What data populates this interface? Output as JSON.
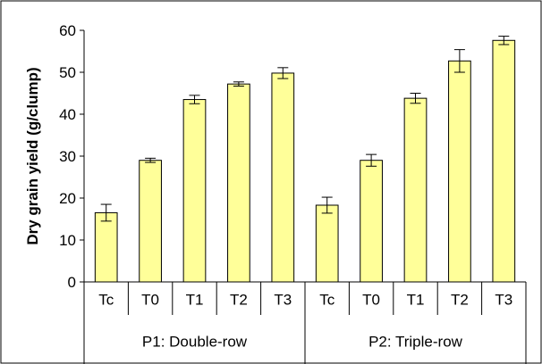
{
  "chart_data": {
    "type": "bar",
    "title": "",
    "ylabel": "Dry grain yield (g/clump)",
    "xlabel": "",
    "ylim": [
      0,
      60
    ],
    "yticks": [
      0,
      10,
      20,
      30,
      40,
      50,
      60
    ],
    "grid": false,
    "legend": "none",
    "bar_color": "#ffff99",
    "bar_edge_color": "#000000",
    "groups": [
      {
        "name": "P1: Double-row",
        "categories": [
          "Tc",
          "T0",
          "T1",
          "T2",
          "T3"
        ],
        "values": [
          16.5,
          29.0,
          43.5,
          47.2,
          49.8
        ],
        "errors": [
          2.0,
          0.5,
          1.0,
          0.5,
          1.3
        ]
      },
      {
        "name": "P2: Triple-row",
        "categories": [
          "Tc",
          "T0",
          "T1",
          "T2",
          "T3"
        ],
        "values": [
          18.3,
          29.0,
          43.8,
          52.7,
          57.6
        ],
        "errors": [
          1.9,
          1.4,
          1.2,
          2.7,
          1.0
        ]
      }
    ]
  }
}
